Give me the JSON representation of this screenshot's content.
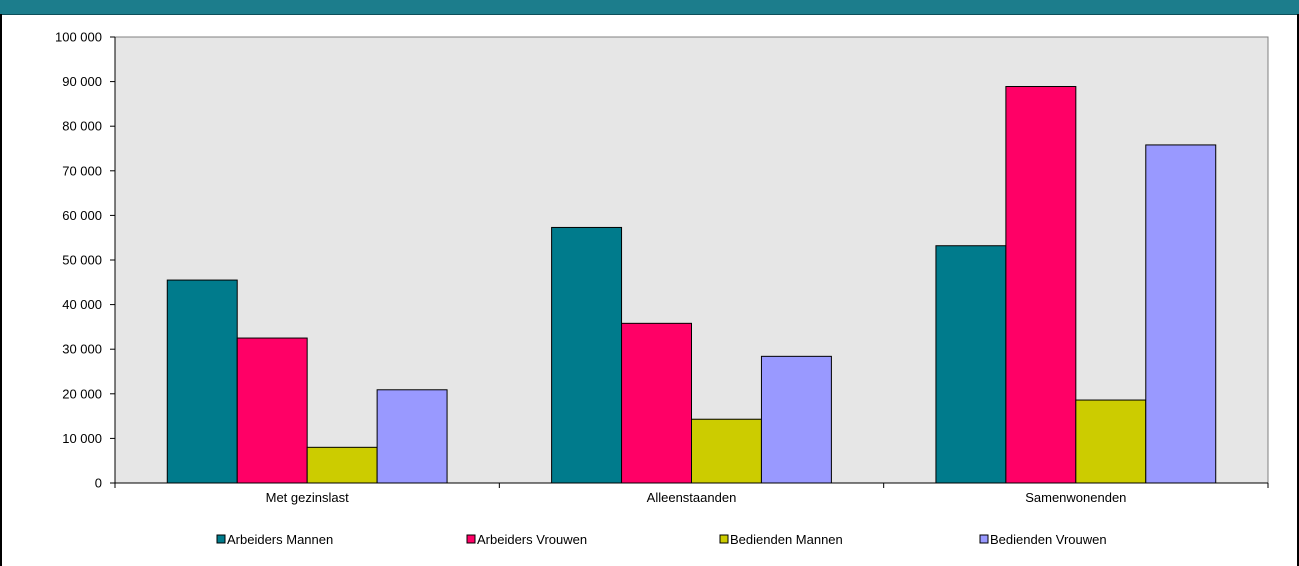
{
  "chart_data": {
    "type": "bar",
    "categories": [
      "Met gezinslast",
      "Alleenstaanden",
      "Samenwonenden"
    ],
    "series": [
      {
        "name": "Arbeiders Mannen",
        "values": [
          45500,
          57300,
          53200
        ],
        "color": "#007b8c"
      },
      {
        "name": "Arbeiders Vrouwen",
        "values": [
          32500,
          35800,
          88900
        ],
        "color": "#ff0066"
      },
      {
        "name": "Bedienden Mannen",
        "values": [
          8000,
          14300,
          18600
        ],
        "color": "#cccc00"
      },
      {
        "name": "Bedienden Vrouwen",
        "values": [
          20900,
          28400,
          75800
        ],
        "color": "#9999ff"
      }
    ],
    "yticks": [
      "0",
      "10 000",
      "20 000",
      "30 000",
      "40 000",
      "50 000",
      "60 000",
      "70 000",
      "80 000",
      "90 000",
      "100 000"
    ],
    "ylim": [
      0,
      100000
    ],
    "grid": false,
    "plot_background": "#e6e6e6",
    "legend_position": "bottom"
  },
  "colors": {
    "header_band": "#1c7d8c"
  }
}
